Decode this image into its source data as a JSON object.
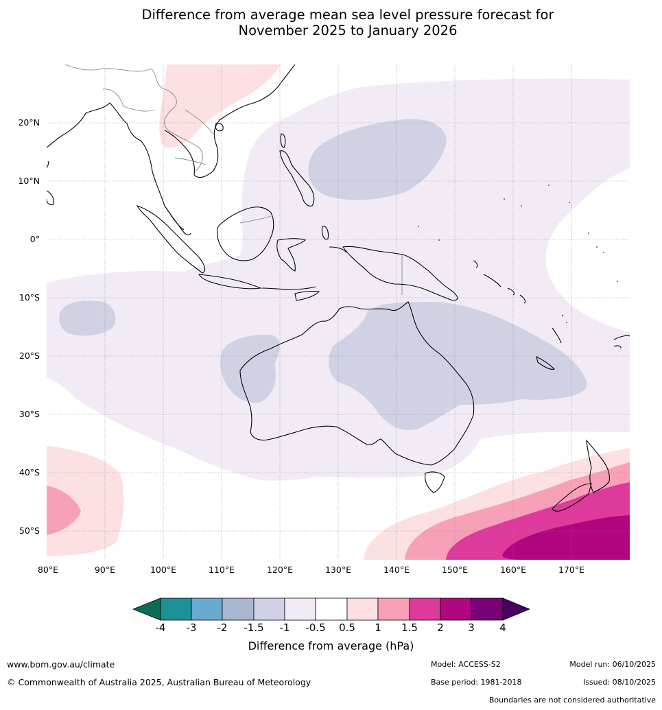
{
  "title": {
    "line1": "Difference from average mean sea level pressure forecast for",
    "line2": "November 2025 to January 2026"
  },
  "map": {
    "latitude_labels": [
      "20°N",
      "10°N",
      "0°",
      "10°S",
      "20°S",
      "30°S",
      "40°S",
      "50°S"
    ],
    "longitude_labels": [
      "80°E",
      "90°E",
      "100°E",
      "110°E",
      "120°E",
      "130°E",
      "140°E",
      "150°E",
      "160°E",
      "170°E"
    ],
    "extent": {
      "lon_min": 80,
      "lon_max": 180,
      "lat_min": -55,
      "lat_max": 30
    }
  },
  "colorbar": {
    "tick_labels": [
      "-4",
      "-3",
      "-2",
      "-1.5",
      "-1",
      "-0.5",
      "0.5",
      "1",
      "1.5",
      "2",
      "3",
      "4"
    ],
    "colors": [
      "#0d6b5a",
      "#1e9098",
      "#6aaad0",
      "#a8b6d2",
      "#d0d1e5",
      "#f2ebf5",
      "#ffffff",
      "#fde0e1",
      "#f8a0b8",
      "#de3a9c",
      "#b0067f",
      "#7a0077",
      "#4a0060"
    ],
    "label": "Difference from average (hPa)"
  },
  "footer": {
    "website": "www.bom.gov.au/climate",
    "copyright": "© Commonwealth of Australia 2025, Australian Bureau of Meteorology",
    "model": "Model: ACCESS-S2",
    "base_period": "Base period: 1981-2018",
    "model_run": "Model run: 06/10/2025",
    "issued": "Issued: 08/10/2025",
    "disclaimer": "Boundaries are not considered authoritative"
  }
}
